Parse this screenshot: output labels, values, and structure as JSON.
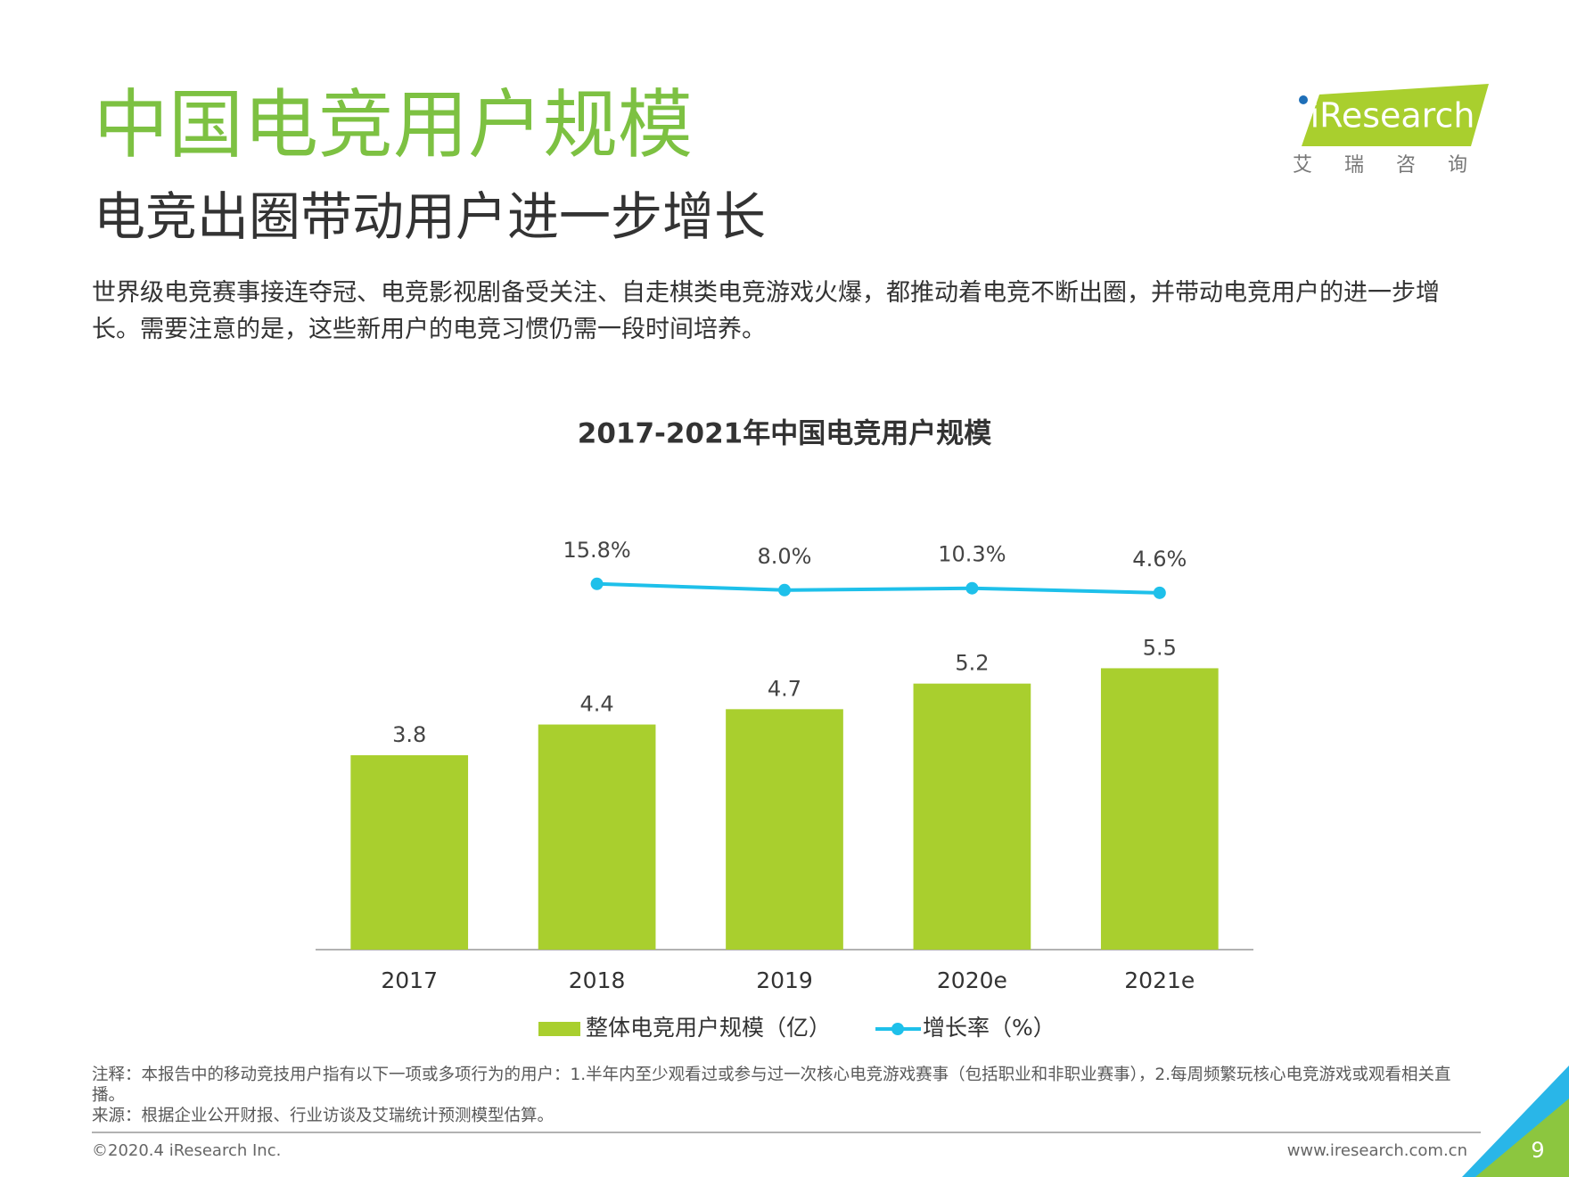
{
  "header": {
    "title": "中国电竞用户规模",
    "subtitle": "电竞出圈带动用户进一步增长",
    "description": "世界级电竞赛事接连夺冠、电竞影视剧备受关注、自走棋类电竞游戏火爆，都推动着电竞不断出圈，并带动电竞用户的进一步增长。需要注意的是，这些新用户的电竞习惯仍需一段时间培养。"
  },
  "logo": {
    "brand": "iResearch",
    "chinese": "艾瑞咨询"
  },
  "chart_data": {
    "type": "bar",
    "title": "2017-2021年中国电竞用户规模",
    "categories": [
      "2017",
      "2018",
      "2019",
      "2020e",
      "2021e"
    ],
    "series": [
      {
        "name": "整体电竞用户规模（亿）",
        "color": "#a9cf2e",
        "values": [
          3.8,
          4.4,
          4.7,
          5.2,
          5.5
        ]
      },
      {
        "name": "增长率（%）",
        "type": "line",
        "axis": "y2",
        "color": "#1ec0ea",
        "values": [
          null,
          15.8,
          8.0,
          10.3,
          4.6
        ],
        "value_labels": [
          null,
          "15.8%",
          "8.0%",
          "10.3%",
          "4.6%"
        ]
      }
    ],
    "ylim": [
      0,
      8
    ],
    "y2lim": [
      -440,
      70
    ],
    "legend": "bottom"
  },
  "notes": {
    "note": "注释：本报告中的移动竞技用户指有以下一项或多项行为的用户：1.半年内至少观看过或参与过一次核心电竞游戏赛事（包括职业和非职业赛事），2.每周频繁玩核心电竞游戏或观看相关直播。",
    "source": "来源：根据企业公开财报、行业访谈及艾瑞统计预测模型估算。"
  },
  "footer": {
    "copyright": "©2020.4 iResearch Inc.",
    "website": "www.iresearch.com.cn",
    "page": "9"
  }
}
